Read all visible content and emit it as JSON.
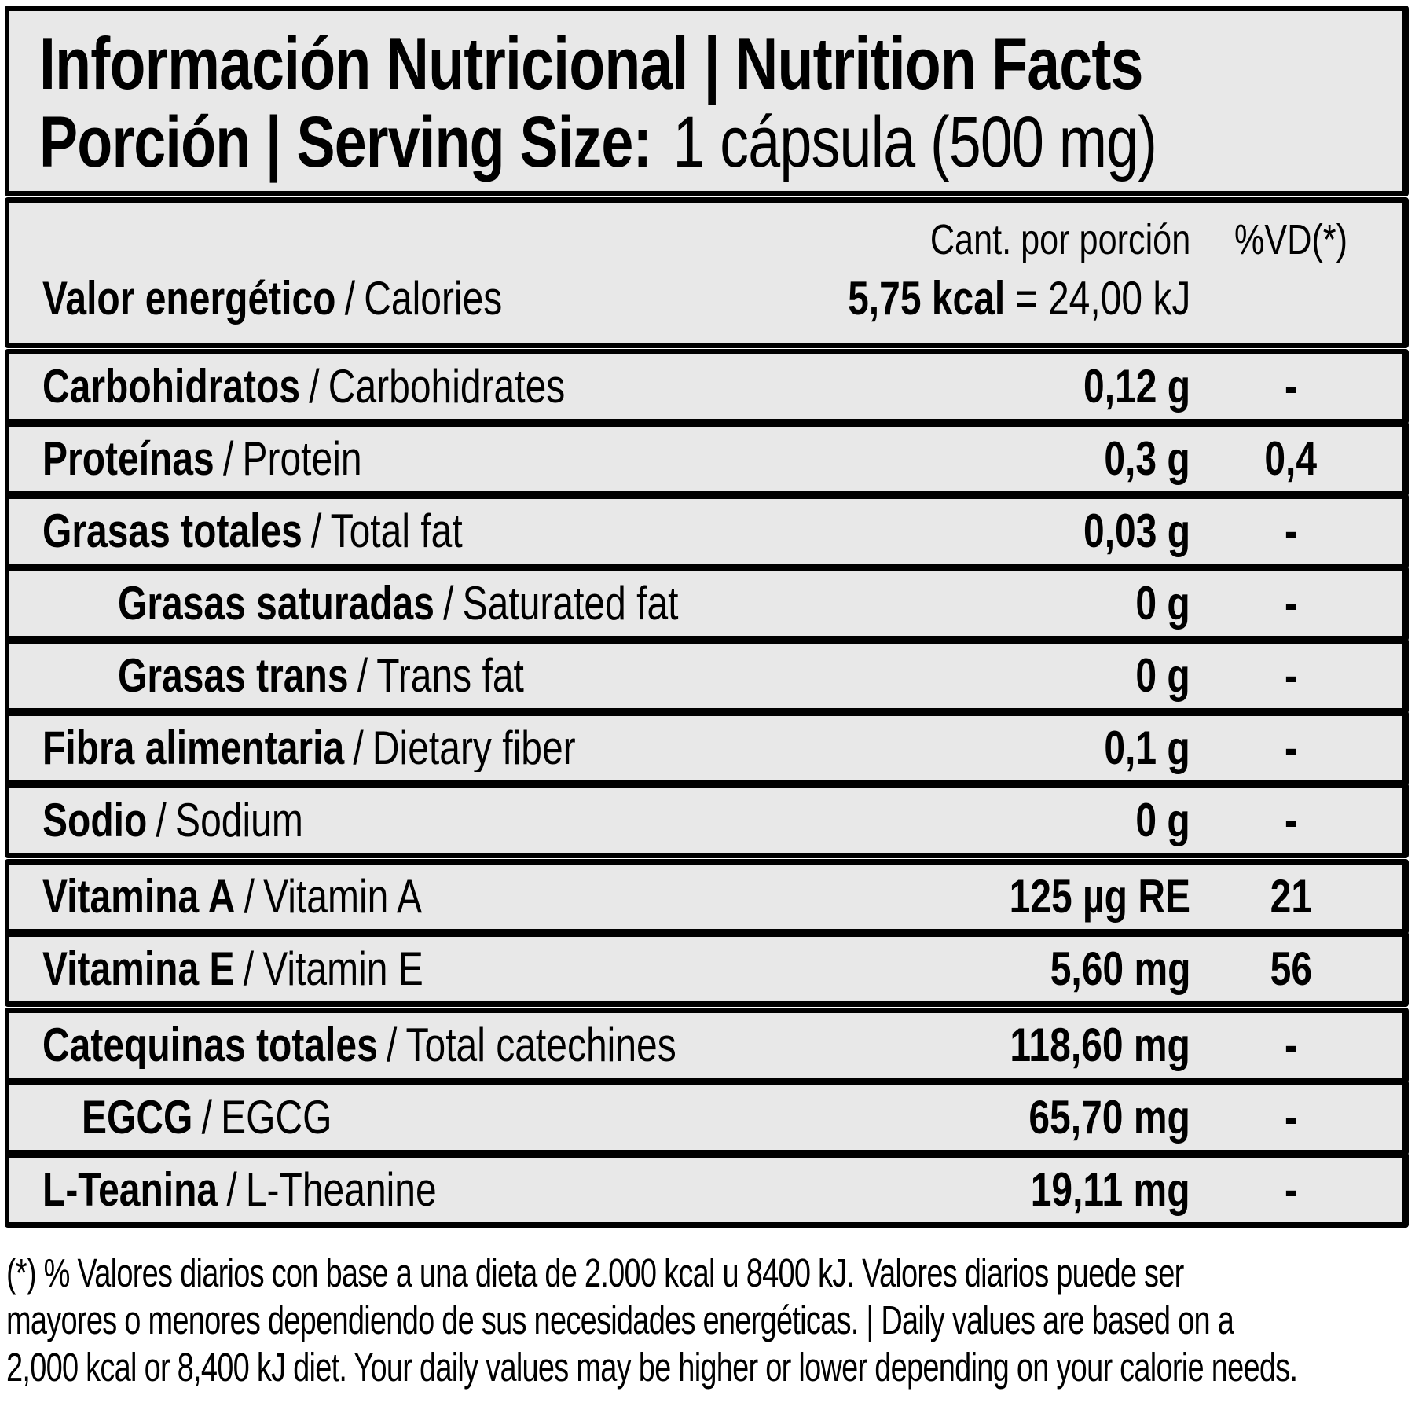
{
  "sep": "/",
  "header": {
    "title": "Información Nutricional | Nutrition Facts",
    "serving_label": "Porción | Serving Size:",
    "serving_value": "1 cápsula (500 mg)"
  },
  "columns": {
    "amount": "Cant. por porción",
    "dv": "%VD(*)"
  },
  "energy": {
    "label_es": "Valor energético",
    "label_en": "Calories",
    "amount_bold": "5,75 kcal",
    "amount_rest": "= 24,00 kJ"
  },
  "rows": [
    {
      "es": "Carbohidratos",
      "en": "Carbohidrates",
      "amount": "0,12 g",
      "dv": "-"
    },
    {
      "es": "Proteínas",
      "en": "Protein",
      "amount": "0,3 g",
      "dv": "0,4"
    },
    {
      "es": "Grasas totales",
      "en": "Total fat",
      "amount": "0,03 g",
      "dv": "-"
    },
    {
      "es": "Grasas saturadas",
      "en": "Saturated fat",
      "amount": "0 g",
      "dv": "-"
    },
    {
      "es": "Grasas trans",
      "en": "Trans fat",
      "amount": "0 g",
      "dv": "-"
    },
    {
      "es": "Fibra alimentaria",
      "en": "Dietary fiber",
      "amount": "0,1 g",
      "dv": "-"
    },
    {
      "es": "Sodio",
      "en": "Sodium",
      "amount": "0 g",
      "dv": "-"
    },
    {
      "es": "Vitamina A",
      "en": "Vitamin A",
      "amount": "125 µg RE",
      "dv": "21"
    },
    {
      "es": "Vitamina E",
      "en": "Vitamin E",
      "amount": "5,60 mg",
      "dv": "56"
    },
    {
      "es": "Catequinas totales",
      "en": "Total catechines",
      "amount": "118,60 mg",
      "dv": "-"
    },
    {
      "es": "EGCG",
      "en": "EGCG",
      "amount": "65,70 mg",
      "dv": "-"
    },
    {
      "es": "L-Teanina",
      "en": "L-Theanine",
      "amount": "19,11 mg",
      "dv": "-"
    }
  ],
  "footnote": {
    "line1": "(*) % Valores diarios con base a una dieta de 2.000 kcal u 8400 kJ. Valores diarios puede ser",
    "line2": "mayores o menores dependiendo de sus necesidades energéticas. | Daily values are based on a",
    "line3": "2,000 kcal or 8,400 kJ diet. Your daily values may be higher or lower depending on your calorie needs."
  }
}
